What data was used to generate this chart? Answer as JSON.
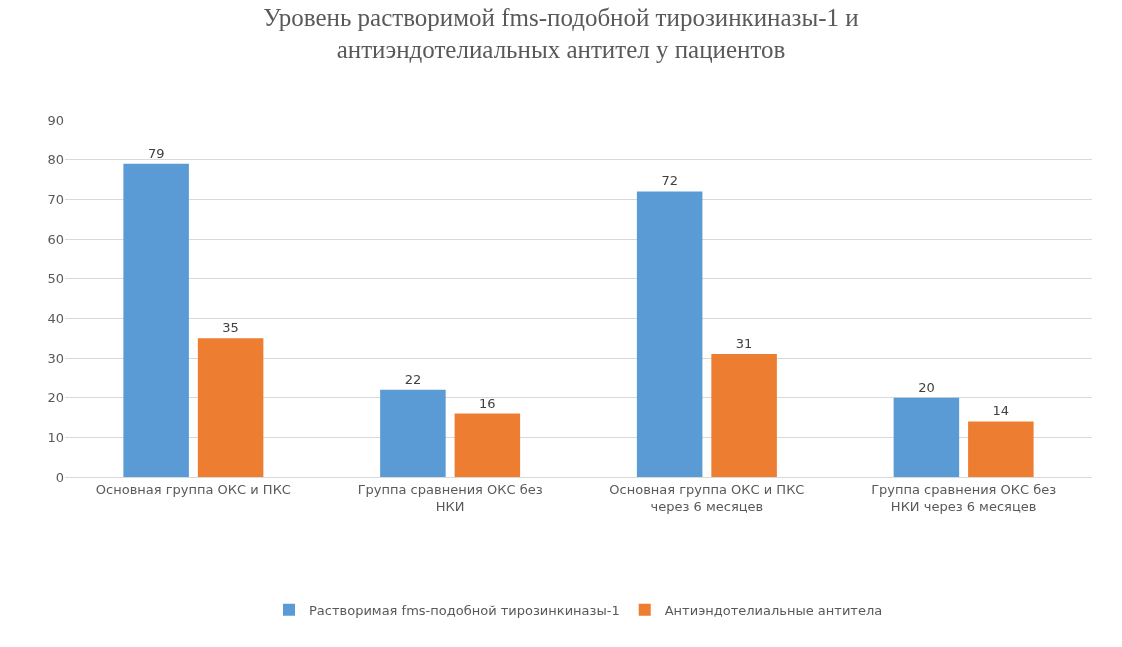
{
  "chart_data": {
    "type": "bar",
    "title": "Уровень растворимой fms-подобной тирозинкиназы-1 и антиэндотелиальных антител у пациентов",
    "categories": [
      "Основная группа ОКС и ПКС",
      "Группа сравнения ОКС без НКИ",
      "Основная группа ОКС и ПКС через 6 месяцев",
      "Группа сравнения ОКС без НКИ через 6 месяцев"
    ],
    "series": [
      {
        "name": "Растворимая fms-подобной тирозинкиназы-1",
        "color": "#5b9bd5",
        "values": [
          79,
          22,
          72,
          20
        ]
      },
      {
        "name": "Антиэндотелиальные антитела",
        "color": "#ed7d31",
        "values": [
          35,
          16,
          31,
          14
        ]
      }
    ],
    "ylim": [
      0,
      90
    ],
    "yticks": [
      0,
      10,
      20,
      30,
      40,
      50,
      60,
      70,
      80,
      90
    ],
    "grid": "y",
    "legend": "bottom",
    "data_labels": true
  }
}
